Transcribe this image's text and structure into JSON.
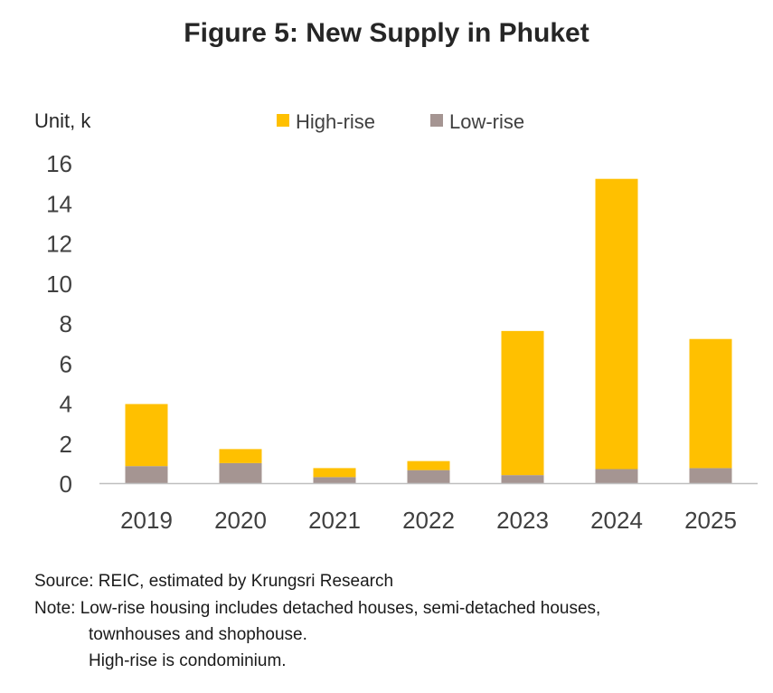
{
  "chart_data": {
    "type": "bar",
    "stacked": true,
    "title": "Figure 5: New Supply in Phuket",
    "ylabel": "Unit, k",
    "xlabel": "",
    "categories": [
      "2019",
      "2020",
      "2021",
      "2022",
      "2023",
      "2024",
      "2025"
    ],
    "series": [
      {
        "name": "Low-rise",
        "color": "#a59592",
        "values": [
          0.85,
          1.0,
          0.3,
          0.65,
          0.4,
          0.7,
          0.75
        ]
      },
      {
        "name": "High-rise",
        "color": "#ffc000",
        "values": [
          3.1,
          0.7,
          0.45,
          0.45,
          7.2,
          14.5,
          6.45
        ]
      }
    ],
    "legend_order": [
      "High-rise",
      "Low-rise"
    ],
    "ylim": [
      0,
      16
    ],
    "yticks": [
      "0",
      "2",
      "4",
      "6",
      "8",
      "10",
      "12",
      "14",
      "16"
    ],
    "grid": false,
    "legend_position": "top"
  },
  "notes": {
    "source": "Source: REIC, estimated by Krungsri Research",
    "note_line1": "Note: Low-rise housing  includes detached houses, semi-detached houses,",
    "note_line2": "townhouses and shophouse.",
    "note_line3": "High-rise is condominium."
  }
}
